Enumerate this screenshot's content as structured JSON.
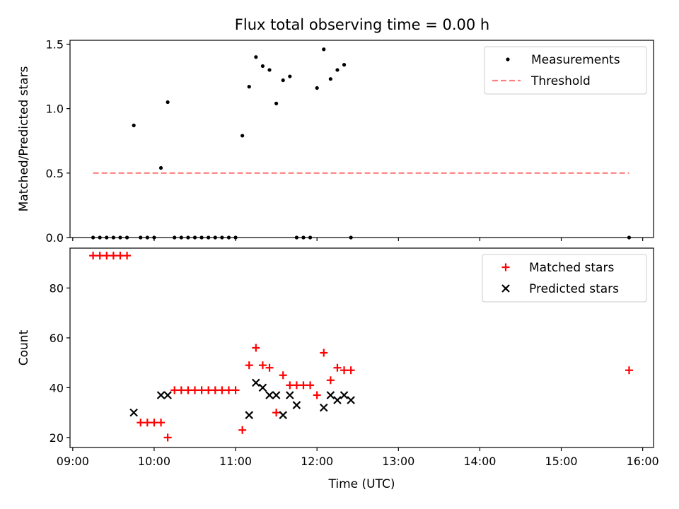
{
  "chart_data": [
    {
      "type": "scatter",
      "title": "Flux total observing time = 0.00 h",
      "xlabel": "",
      "ylabel": "Matched/Predicted stars",
      "xlim": [
        "08:58",
        "16:08"
      ],
      "ylim": [
        0,
        1.53
      ],
      "yticks": [
        "0.0",
        "0.5",
        "1.0",
        "1.5"
      ],
      "legend_position": "top-right",
      "grid": false,
      "series": [
        {
          "name": "Measurements",
          "marker": "dot",
          "color": "#000000",
          "x": [
            "09:15",
            "09:20",
            "09:25",
            "09:30",
            "09:35",
            "09:40",
            "09:45",
            "09:50",
            "09:55",
            "10:00",
            "10:05",
            "10:10",
            "10:15",
            "10:20",
            "10:25",
            "10:30",
            "10:35",
            "10:40",
            "10:45",
            "10:50",
            "10:55",
            "11:00",
            "11:05",
            "11:10",
            "11:15",
            "11:20",
            "11:25",
            "11:30",
            "11:35",
            "11:40",
            "11:45",
            "11:50",
            "11:55",
            "12:00",
            "12:05",
            "12:10",
            "12:15",
            "12:20",
            "12:25",
            "15:50"
          ],
          "y": [
            0,
            0,
            0,
            0,
            0,
            0,
            0.87,
            0,
            0,
            0,
            0.54,
            1.05,
            0,
            0,
            0,
            0,
            0,
            0,
            0,
            0,
            0,
            0,
            0.79,
            1.17,
            1.4,
            1.33,
            1.3,
            1.04,
            1.22,
            1.25,
            0,
            0,
            0,
            1.16,
            1.46,
            1.23,
            1.3,
            1.34,
            0,
            0
          ]
        },
        {
          "name": "Threshold",
          "marker": "dashed-line",
          "color": "#ff7f7f",
          "x": [
            "09:15",
            "15:50"
          ],
          "y": [
            0.5,
            0.5
          ]
        }
      ]
    },
    {
      "type": "scatter",
      "title": "",
      "xlabel": "Time (UTC)",
      "ylabel": "Count",
      "xlim": [
        "08:58",
        "16:08"
      ],
      "ylim": [
        16,
        96
      ],
      "yticks": [
        "20",
        "40",
        "60",
        "80"
      ],
      "xticks": [
        "09:00",
        "10:00",
        "11:00",
        "12:00",
        "13:00",
        "14:00",
        "15:00",
        "16:00"
      ],
      "legend_position": "top-right",
      "grid": false,
      "series": [
        {
          "name": "Matched stars",
          "marker": "plus",
          "color": "#ff0000",
          "x": [
            "09:15",
            "09:20",
            "09:25",
            "09:30",
            "09:35",
            "09:40",
            "09:50",
            "09:55",
            "10:00",
            "10:05",
            "10:10",
            "10:15",
            "10:20",
            "10:25",
            "10:30",
            "10:35",
            "10:40",
            "10:45",
            "10:50",
            "10:55",
            "11:00",
            "11:05",
            "11:10",
            "11:15",
            "11:20",
            "11:25",
            "11:30",
            "11:35",
            "11:40",
            "11:45",
            "11:50",
            "11:55",
            "12:00",
            "12:05",
            "12:10",
            "12:15",
            "12:20",
            "12:25",
            "15:50"
          ],
          "y": [
            93,
            93,
            93,
            93,
            93,
            93,
            26,
            26,
            26,
            26,
            20,
            39,
            39,
            39,
            39,
            39,
            39,
            39,
            39,
            39,
            39,
            23,
            49,
            56,
            49,
            48,
            30,
            45,
            41,
            41,
            41,
            41,
            37,
            54,
            43,
            48,
            47,
            47,
            47
          ]
        },
        {
          "name": "Predicted stars",
          "marker": "x",
          "color": "#000000",
          "x": [
            "09:45",
            "10:05",
            "10:10",
            "11:10",
            "11:15",
            "11:20",
            "11:25",
            "11:30",
            "11:35",
            "11:40",
            "11:45",
            "12:05",
            "12:10",
            "12:15",
            "12:20",
            "12:25"
          ],
          "y": [
            30,
            37,
            37,
            29,
            42,
            40,
            37,
            37,
            29,
            37,
            33,
            32,
            37,
            35,
            37,
            35
          ]
        }
      ]
    }
  ]
}
